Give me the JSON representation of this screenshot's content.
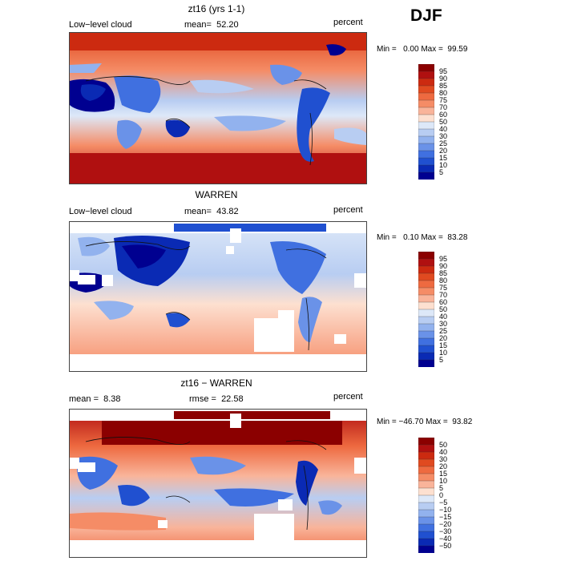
{
  "season": "DJF",
  "panels": [
    {
      "title": "zt16 (yrs 1-1)",
      "left_label": "Low−level cloud",
      "mean_label": "mean=",
      "mean_value": "52.20",
      "right_label": "percent",
      "min_label": "Min =",
      "min_value": "0.00",
      "max_label": "Max =",
      "max_value": "99.59",
      "colorbar": {
        "labels": [
          "95",
          "90",
          "85",
          "80",
          "75",
          "70",
          "60",
          "50",
          "40",
          "30",
          "25",
          "20",
          "15",
          "10",
          "5"
        ],
        "colors": [
          "#8b0000",
          "#b01010",
          "#cc2a10",
          "#e04a20",
          "#ee6a40",
          "#f58c66",
          "#f9b49a",
          "#fde0d0",
          "#dde8f8",
          "#b8cdf2",
          "#92b2ee",
          "#6a92e8",
          "#4070e0",
          "#2050d0",
          "#0a2ab4",
          "#000090"
        ]
      }
    },
    {
      "title": "WARREN",
      "left_label": "Low−level cloud",
      "mean_label": "mean=",
      "mean_value": "43.82",
      "right_label": "percent",
      "min_label": "Min =",
      "min_value": "0.10",
      "max_label": "Max =",
      "max_value": "83.28",
      "colorbar": {
        "labels": [
          "95",
          "90",
          "85",
          "80",
          "75",
          "70",
          "60",
          "50",
          "40",
          "30",
          "25",
          "20",
          "15",
          "10",
          "5"
        ],
        "colors": [
          "#8b0000",
          "#b01010",
          "#cc2a10",
          "#e04a20",
          "#ee6a40",
          "#f58c66",
          "#f9b49a",
          "#fde0d0",
          "#dde8f8",
          "#b8cdf2",
          "#92b2ee",
          "#6a92e8",
          "#4070e0",
          "#2050d0",
          "#0a2ab4",
          "#000090"
        ]
      }
    },
    {
      "title": "zt16 − WARREN",
      "left_label": "mean =",
      "left_value": "8.38",
      "mean_label": "rmse =",
      "mean_value": "22.58",
      "right_label": "percent",
      "min_label": "Min =",
      "min_value": "−46.70",
      "max_label": "Max =",
      "max_value": "93.82",
      "colorbar": {
        "labels": [
          "50",
          "40",
          "30",
          "20",
          "15",
          "10",
          "5",
          "0",
          "−5",
          "−10",
          "−15",
          "−20",
          "−30",
          "−40",
          "−50"
        ],
        "colors": [
          "#8b0000",
          "#b01010",
          "#cc2a10",
          "#e04a20",
          "#ee6a40",
          "#f58c66",
          "#f9b49a",
          "#fde0d0",
          "#dde8f8",
          "#b8cdf2",
          "#92b2ee",
          "#6a92e8",
          "#4070e0",
          "#2050d0",
          "#0a2ab4",
          "#000090"
        ]
      }
    }
  ]
}
